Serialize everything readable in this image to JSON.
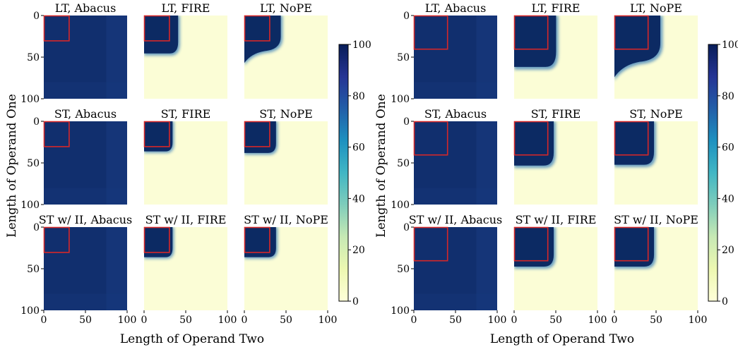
{
  "chart_data": [
    {
      "type": "heatmap",
      "xlabel": "Length of Operand Two",
      "ylabel": "Length of Operand One",
      "colorbar": {
        "min": 0,
        "max": 100,
        "ticks": [
          "0",
          "20",
          "40",
          "60",
          "80",
          "100"
        ],
        "colormap": "YlGnBu"
      },
      "axis_ticks": [
        "0",
        "50",
        "100"
      ],
      "xlim": [
        0,
        100
      ],
      "ylim": [
        0,
        100
      ],
      "train_box": 30,
      "panels": [
        {
          "title": "LT, Abacus",
          "kind": "abacus"
        },
        {
          "title": "LT, FIRE",
          "kind": "fire",
          "edge": 43,
          "bottom": 48
        },
        {
          "title": "LT, NoPE",
          "kind": "nope",
          "edge": 46,
          "bottom": 60
        },
        {
          "title": "ST, Abacus",
          "kind": "abacus"
        },
        {
          "title": "ST, FIRE",
          "kind": "fire",
          "edge": 36,
          "bottom": 38
        },
        {
          "title": "ST, NoPE",
          "kind": "fire",
          "edge": 40,
          "bottom": 40
        },
        {
          "title": "ST w/ II, Abacus",
          "kind": "abacus"
        },
        {
          "title": "ST w/ II, FIRE",
          "kind": "fire",
          "edge": 36,
          "bottom": 38
        },
        {
          "title": "ST w/ II, NoPE",
          "kind": "fire",
          "edge": 40,
          "bottom": 38
        }
      ]
    },
    {
      "type": "heatmap",
      "xlabel": "Length of Operand Two",
      "ylabel": "Length of Operand One",
      "colorbar": {
        "min": 0,
        "max": 100,
        "ticks": [
          "0",
          "20",
          "40",
          "60",
          "80",
          "100"
        ],
        "colormap": "YlGnBu"
      },
      "axis_ticks": [
        "0",
        "50",
        "100"
      ],
      "xlim": [
        0,
        100
      ],
      "ylim": [
        0,
        100
      ],
      "train_box": 40,
      "panels": [
        {
          "title": "LT, Abacus",
          "kind": "abacus"
        },
        {
          "title": "LT, FIRE",
          "kind": "fire",
          "edge": 53,
          "bottom": 65
        },
        {
          "title": "LT, NoPE",
          "kind": "nope",
          "edge": 58,
          "bottom": 78
        },
        {
          "title": "ST, Abacus",
          "kind": "abacus"
        },
        {
          "title": "ST, FIRE",
          "kind": "fire",
          "edge": 50,
          "bottom": 56
        },
        {
          "title": "ST, NoPE",
          "kind": "fire",
          "edge": 50,
          "bottom": 55
        },
        {
          "title": "ST w/ II, Abacus",
          "kind": "abacus"
        },
        {
          "title": "ST w/ II, FIRE",
          "kind": "fire",
          "edge": 50,
          "bottom": 50
        },
        {
          "title": "ST w/ II, NoPE",
          "kind": "fire",
          "edge": 50,
          "bottom": 50
        }
      ]
    }
  ]
}
